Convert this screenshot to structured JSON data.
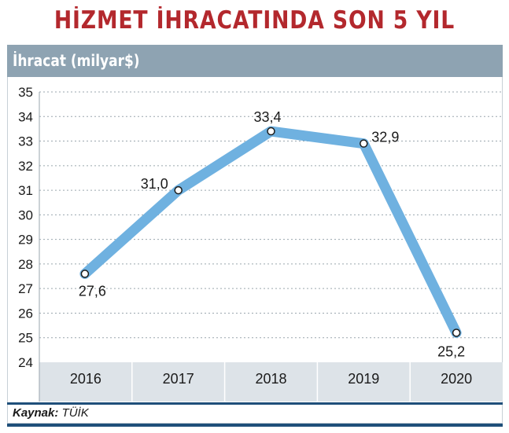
{
  "title": "HİZMET İHRACATINDA SON 5 YIL",
  "unit_label": "İhracat (milyar$)",
  "source_label": "Kaynak:",
  "source_value": "TÜİK",
  "colors": {
    "title": "#b3282d",
    "line": "#6fb1e0",
    "header_bar": "#8ea3b2",
    "category_band": "#dde3e8",
    "rule": "#1f4f7a"
  },
  "chart_data": {
    "type": "line",
    "categories": [
      "2016",
      "2017",
      "2018",
      "2019",
      "2020"
    ],
    "values": [
      27.6,
      31.0,
      33.4,
      32.9,
      25.2
    ],
    "value_labels": [
      "27,6",
      "31,0",
      "33,4",
      "32,9",
      "25,2"
    ],
    "yticks": [
      "24",
      "25",
      "26",
      "27",
      "28",
      "29",
      "30",
      "31",
      "32",
      "33",
      "34",
      "35"
    ],
    "ylim": [
      24,
      35
    ],
    "grid": true
  }
}
